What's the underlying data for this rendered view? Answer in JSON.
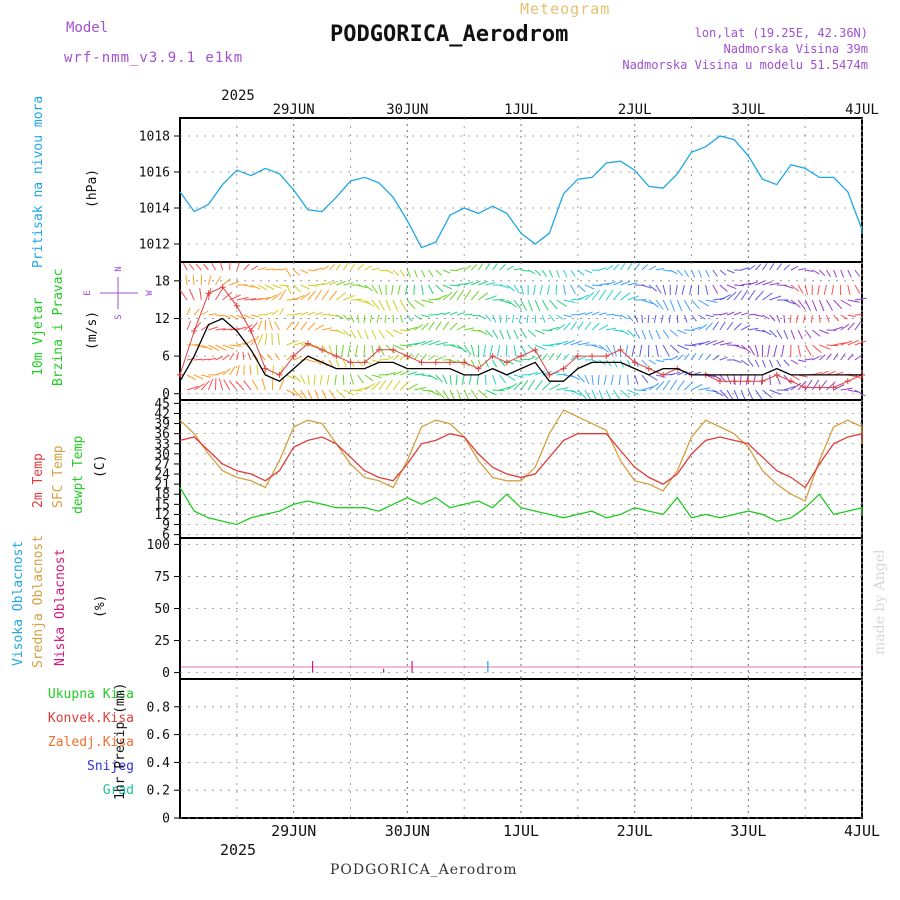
{
  "header": {
    "model_label": "Model",
    "model_name": "wrf-nmm_v3.9.1 e1km",
    "meteogram_label": "Meteogram",
    "station_title": "PODGORICA_Aerodrom",
    "lonlat": "lon,lat (19.25E, 42.36N)",
    "elevation": "Nadmorska Visina 39m",
    "model_elevation": "Nadmorska Visina u modelu 51.5474m",
    "footer_station": "PODGORICA_Aerodrom",
    "watermark": "made by Angel"
  },
  "colors": {
    "pressure": "#1ea7e6",
    "temp2m": "#e03c3c",
    "sfc_temp": "#d4a040",
    "dewpt": "#22cc22",
    "wind_speed": "#000000",
    "gust_marker": "#e04040",
    "high_cloud": "#1ea7e6",
    "mid_cloud": "#d4a040",
    "low_cloud": "#d01880",
    "purple_text": "#a050d0",
    "grid": "#888888"
  },
  "time_axis": {
    "top_year": "2025",
    "bottom_year": "2025",
    "day_labels": [
      "29JUN",
      "30JUN",
      "1JUL",
      "2JUL",
      "3JUL",
      "4JUL"
    ],
    "start_hour": -12,
    "end_hour": 132,
    "label_hours": [
      12,
      36,
      60,
      84,
      108,
      132
    ]
  },
  "panels": {
    "pressure": {
      "line1": "Pritisak na nivou mora",
      "unit": "(hPa)",
      "ticks": [
        "1012",
        "1014",
        "1016",
        "1018"
      ]
    },
    "wind": {
      "line1": "10m Vjetar",
      "line2": "Brzina i Pravac",
      "unit": "(m/s)",
      "ticks": [
        "0",
        "6",
        "12",
        "18"
      ],
      "compass": {
        "n": "N",
        "s": "S",
        "e": "E",
        "w": "W"
      }
    },
    "temp": {
      "line1": "2m Temp",
      "line2": "SFC Temp",
      "line3": "dewpt Temp",
      "unit": "(C)",
      "ticks": [
        "6",
        "9",
        "12",
        "15",
        "18",
        "21",
        "24",
        "27",
        "30",
        "33",
        "36",
        "39",
        "42",
        "45"
      ]
    },
    "cloud": {
      "line1": "Visoka Oblacnost",
      "line2": "Srednja Oblacnost",
      "line3": "Niska Oblacnost",
      "unit": "(%)",
      "ticks": [
        "0",
        "25",
        "50",
        "75",
        "100"
      ]
    },
    "precip": {
      "legend": [
        "Ukupna Kisa",
        "Konvek.Kisa",
        "Zaledj.Kisa",
        "Snijeg",
        "Grad"
      ],
      "legend_colors": [
        "#22cc22",
        "#e03c3c",
        "#f07030",
        "#3030e0",
        "#20c0a0"
      ],
      "unit": "1hr Precip (mm)",
      "ticks": [
        "0",
        "0.2",
        "0.4",
        "0.6",
        "0.8"
      ]
    }
  },
  "chart_data": [
    {
      "type": "line",
      "name": "pressure",
      "x_unit": "hours from 29JUN 00UTC",
      "ylabel": "Pritisak na nivou mora (hPa)",
      "ylim": [
        1011,
        1019
      ],
      "series": [
        {
          "x": [
            -12,
            -9,
            -6,
            -3,
            0,
            3,
            6,
            9,
            12,
            15,
            18,
            21,
            24,
            27,
            30,
            33,
            36,
            39,
            42,
            45,
            48,
            51,
            54,
            57,
            60,
            63,
            66,
            69,
            72,
            75,
            78,
            81,
            84,
            87,
            90,
            93,
            96,
            99,
            102,
            105,
            108,
            111,
            114,
            117,
            120,
            123,
            126,
            129,
            132,
            135
          ],
          "values": [
            1014.9,
            1013.8,
            1014.2,
            1015.3,
            1016.1,
            1015.8,
            1016.2,
            1015.9,
            1015.0,
            1013.9,
            1013.8,
            1014.6,
            1015.5,
            1015.7,
            1015.4,
            1014.6,
            1013.3,
            1011.8,
            1012.1,
            1013.6,
            1014.0,
            1013.7,
            1014.1,
            1013.7,
            1012.6,
            1012.0,
            1012.6,
            1014.8,
            1015.6,
            1015.7,
            1016.5,
            1016.6,
            1016.1,
            1015.2,
            1015.1,
            1015.9,
            1017.1,
            1017.4,
            1018.0,
            1017.8,
            1016.9,
            1015.6,
            1015.3,
            1016.4,
            1016.2,
            1015.7,
            1015.7,
            1014.9,
            1012.8,
            1012.6
          ]
        }
      ]
    },
    {
      "type": "line",
      "name": "wind",
      "x_unit": "hours from 29JUN 00UTC",
      "ylabel": "10m Vjetar Brzina i Pravac (m/s)",
      "ylim": [
        -1,
        21
      ],
      "series": [
        {
          "name": "speed",
          "x": [
            -12,
            -9,
            -6,
            -3,
            0,
            3,
            6,
            9,
            12,
            15,
            18,
            21,
            24,
            27,
            30,
            33,
            36,
            39,
            42,
            45,
            48,
            51,
            54,
            57,
            60,
            63,
            66,
            69,
            72,
            75,
            78,
            81,
            84,
            87,
            90,
            93,
            96,
            99,
            102,
            105,
            108,
            111,
            114,
            117,
            120,
            123,
            126,
            129,
            132,
            135
          ],
          "values": [
            2,
            6,
            11,
            12,
            10,
            7,
            3,
            2,
            4,
            6,
            5,
            4,
            4,
            4,
            5,
            5,
            4,
            4,
            4,
            4,
            3,
            3,
            4,
            3,
            4,
            5,
            2,
            2,
            4,
            5,
            5,
            5,
            4,
            3,
            4,
            4,
            3,
            3,
            3,
            3,
            3,
            3,
            4,
            3,
            3,
            3,
            3,
            3,
            3,
            3
          ]
        },
        {
          "name": "gust",
          "x": [
            -12,
            -9,
            -6,
            -3,
            0,
            3,
            6,
            9,
            12,
            15,
            18,
            21,
            24,
            27,
            30,
            33,
            36,
            39,
            42,
            45,
            48,
            51,
            54,
            57,
            60,
            63,
            66,
            69,
            72,
            75,
            78,
            81,
            84,
            87,
            90,
            93,
            96,
            99,
            102,
            105,
            108,
            111,
            114,
            117,
            120,
            123,
            126,
            129,
            132,
            135
          ],
          "values": [
            3,
            10,
            16,
            17,
            14,
            10,
            4,
            3,
            6,
            8,
            7,
            6,
            5,
            5,
            7,
            7,
            6,
            5,
            5,
            5,
            5,
            4,
            6,
            5,
            6,
            7,
            3,
            4,
            6,
            6,
            6,
            7,
            5,
            4,
            3,
            4,
            3,
            3,
            2,
            2,
            2,
            2,
            3,
            2,
            1,
            1,
            1,
            2,
            3,
            3
          ]
        }
      ]
    },
    {
      "type": "line",
      "name": "temperature",
      "x_unit": "hours from 29JUN 00UTC",
      "ylabel": "(C)",
      "ylim": [
        5,
        46
      ],
      "series": [
        {
          "name": "2m Temp",
          "x": [
            -12,
            -9,
            -6,
            -3,
            0,
            3,
            6,
            9,
            12,
            15,
            18,
            21,
            24,
            27,
            30,
            33,
            36,
            39,
            42,
            45,
            48,
            51,
            54,
            57,
            60,
            63,
            66,
            69,
            72,
            75,
            78,
            81,
            84,
            87,
            90,
            93,
            96,
            99,
            102,
            105,
            108,
            111,
            114,
            117,
            120,
            123,
            126,
            129,
            132,
            135
          ],
          "values": [
            34,
            35,
            31,
            27,
            25,
            24,
            22,
            25,
            32,
            34,
            35,
            33,
            29,
            25,
            23,
            22,
            27,
            33,
            34,
            36,
            35,
            30,
            26,
            24,
            23,
            24,
            29,
            34,
            36,
            36,
            36,
            31,
            26,
            23,
            21,
            24,
            30,
            34,
            35,
            34,
            33,
            29,
            25,
            23,
            20,
            27,
            33,
            35,
            36,
            34
          ]
        },
        {
          "name": "SFC Temp",
          "x": [
            -12,
            -9,
            -6,
            -3,
            0,
            3,
            6,
            9,
            12,
            15,
            18,
            21,
            24,
            27,
            30,
            33,
            36,
            39,
            42,
            45,
            48,
            51,
            54,
            57,
            60,
            63,
            66,
            69,
            72,
            75,
            78,
            81,
            84,
            87,
            90,
            93,
            96,
            99,
            102,
            105,
            108,
            111,
            114,
            117,
            120,
            123,
            126,
            129,
            132,
            135
          ],
          "values": [
            40,
            36,
            30,
            25,
            23,
            22,
            20,
            28,
            38,
            40,
            39,
            33,
            27,
            23,
            22,
            20,
            28,
            38,
            40,
            39,
            35,
            28,
            23,
            22,
            22,
            26,
            36,
            43,
            41,
            39,
            37,
            28,
            22,
            21,
            19,
            25,
            35,
            40,
            38,
            36,
            32,
            25,
            21,
            18,
            16,
            28,
            38,
            40,
            38,
            33
          ]
        },
        {
          "name": "dewpt Temp",
          "x": [
            -12,
            -9,
            -6,
            -3,
            0,
            3,
            6,
            9,
            12,
            15,
            18,
            21,
            24,
            27,
            30,
            33,
            36,
            39,
            42,
            45,
            48,
            51,
            54,
            57,
            60,
            63,
            66,
            69,
            72,
            75,
            78,
            81,
            84,
            87,
            90,
            93,
            96,
            99,
            102,
            105,
            108,
            111,
            114,
            117,
            120,
            123,
            126,
            129,
            132,
            135
          ],
          "values": [
            20,
            13,
            11,
            10,
            9,
            11,
            12,
            13,
            15,
            16,
            15,
            14,
            14,
            14,
            13,
            15,
            17,
            15,
            17,
            14,
            15,
            16,
            14,
            18,
            14,
            13,
            12,
            11,
            12,
            13,
            11,
            12,
            14,
            13,
            12,
            17,
            11,
            12,
            11,
            12,
            13,
            12,
            10,
            11,
            14,
            18,
            12,
            13,
            14,
            12
          ]
        }
      ]
    },
    {
      "type": "bar",
      "name": "cloud",
      "x_unit": "hours from 29JUN 00UTC",
      "ylabel": "(%)",
      "ylim": [
        -5,
        105
      ],
      "series": [
        {
          "name": "Niska Oblacnost",
          "x": [
            16,
            31,
            37
          ],
          "values": [
            9,
            3,
            9
          ]
        },
        {
          "name": "Visoka Oblacnost",
          "x": [
            53
          ],
          "values": [
            9
          ]
        }
      ]
    },
    {
      "type": "bar",
      "name": "precip",
      "x_unit": "hours from 29JUN 00UTC",
      "ylabel": "1hr Precip (mm)",
      "ylim": [
        0,
        1
      ],
      "series": [
        {
          "name": "Ukupna Kisa",
          "x": [],
          "values": []
        }
      ]
    }
  ]
}
